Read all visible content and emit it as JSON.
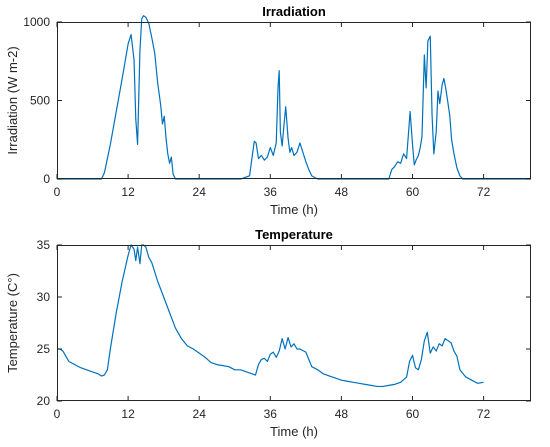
{
  "chart_data": [
    {
      "type": "line",
      "title": "Irradiation",
      "xlabel": "Time (h)",
      "ylabel": "Irradiation (W m-2)",
      "xlim": [
        0,
        80
      ],
      "ylim": [
        0,
        1000
      ],
      "xticks": [
        0,
        12,
        24,
        36,
        48,
        60,
        72
      ],
      "yticks": [
        0,
        500,
        1000
      ],
      "grid": false,
      "color": "#0072BD",
      "series": [
        {
          "x": [
            0,
            7.5,
            8,
            9,
            10,
            11,
            12,
            12.5,
            13,
            13.3,
            13.6,
            14,
            14.3,
            14.6,
            15,
            15.5,
            16,
            16.5,
            17,
            17.5,
            17.8,
            18.1,
            18.4,
            18.7,
            19,
            19.3,
            19.6,
            20,
            21,
            31,
            32.5,
            33,
            33.3,
            33.6,
            34,
            34.5,
            35,
            35.5,
            36,
            36.5,
            37,
            37.3,
            37.5,
            37.7,
            38,
            38.3,
            38.6,
            39,
            39.3,
            39.6,
            40,
            40.5,
            41,
            41.5,
            42,
            42.5,
            43,
            44,
            56,
            56.5,
            57,
            57.5,
            58,
            58.5,
            59,
            59.3,
            59.6,
            60,
            60.3,
            60.6,
            61,
            61.3,
            61.6,
            62,
            62.3,
            62.6,
            63,
            63.3,
            63.6,
            64,
            64.3,
            64.6,
            65,
            65.3,
            65.6,
            66,
            66.3,
            66.6,
            67,
            67.5,
            68,
            68.5,
            69,
            72,
            80
          ],
          "y": [
            0,
            0,
            40,
            220,
            430,
            640,
            860,
            920,
            760,
            380,
            220,
            820,
            1020,
            1040,
            1030,
            990,
            900,
            800,
            610,
            470,
            350,
            400,
            260,
            160,
            100,
            140,
            30,
            0,
            0,
            0,
            20,
            160,
            240,
            230,
            130,
            150,
            120,
            140,
            200,
            150,
            230,
            580,
            690,
            300,
            210,
            340,
            460,
            260,
            170,
            200,
            150,
            170,
            230,
            170,
            110,
            60,
            20,
            0,
            0,
            60,
            80,
            110,
            100,
            160,
            130,
            280,
            430,
            220,
            90,
            120,
            150,
            200,
            270,
            790,
            580,
            880,
            910,
            410,
            160,
            300,
            560,
            480,
            600,
            640,
            580,
            480,
            400,
            250,
            160,
            70,
            20,
            0,
            0,
            0,
            0
          ]
        }
      ]
    },
    {
      "type": "line",
      "title": "Temperature",
      "xlabel": "Time (h)",
      "ylabel": "Temperature (C°)",
      "xlim": [
        0,
        80
      ],
      "ylim": [
        20,
        35
      ],
      "xticks": [
        0,
        12,
        24,
        36,
        48,
        60,
        72
      ],
      "yticks": [
        20,
        25,
        30,
        35
      ],
      "grid": false,
      "color": "#0072BD",
      "series": [
        {
          "x": [
            0,
            0.5,
            1,
            1.5,
            2,
            3,
            4,
            5,
            6,
            7,
            7.5,
            8,
            8.5,
            9,
            10,
            11,
            12,
            12.5,
            13,
            13.3,
            13.6,
            14,
            14.3,
            14.6,
            15,
            15.5,
            16,
            17,
            18,
            19,
            20,
            21,
            22,
            23,
            24,
            25,
            26,
            27,
            28,
            29,
            30,
            31,
            32,
            33,
            33.5,
            34,
            34.5,
            35,
            35.5,
            36,
            36.5,
            37,
            37.5,
            38,
            38.5,
            39,
            39.5,
            40,
            40.5,
            41,
            42,
            43,
            44,
            45,
            46,
            47,
            48,
            49,
            50,
            51,
            52,
            53,
            54,
            55,
            56,
            57,
            58,
            59,
            59.5,
            60,
            60.5,
            61,
            61.5,
            62,
            62.5,
            63,
            63.5,
            64,
            64.5,
            65,
            65.5,
            66,
            66.5,
            67,
            67.5,
            68,
            69,
            70,
            71,
            72
          ],
          "y": [
            25,
            25,
            24.8,
            24.3,
            23.8,
            23.5,
            23.2,
            23,
            22.8,
            22.6,
            22.4,
            22.5,
            23,
            25,
            28.5,
            31.5,
            34,
            35,
            34.6,
            33.5,
            34.8,
            33.2,
            35,
            35,
            34.8,
            33.8,
            33.3,
            31.5,
            30,
            28.5,
            27,
            26,
            25.3,
            25,
            24.6,
            24.2,
            23.7,
            23.5,
            23.4,
            23.3,
            23,
            23,
            22.8,
            22.6,
            22.5,
            23.5,
            24,
            24.1,
            23.8,
            24.5,
            24.7,
            24.2,
            24.8,
            26,
            25,
            26.1,
            25.2,
            25.5,
            25,
            25,
            24.7,
            23.3,
            23,
            22.6,
            22.4,
            22.2,
            22,
            21.9,
            21.8,
            21.7,
            21.6,
            21.5,
            21.4,
            21.4,
            21.5,
            21.6,
            21.8,
            22.3,
            23.8,
            24.4,
            23.2,
            23,
            24,
            25.8,
            26.6,
            24.6,
            25.2,
            24.8,
            25.5,
            25.3,
            26,
            25.8,
            25.6,
            24.8,
            24.3,
            23,
            22.3,
            22,
            21.7,
            21.8
          ]
        }
      ]
    }
  ]
}
